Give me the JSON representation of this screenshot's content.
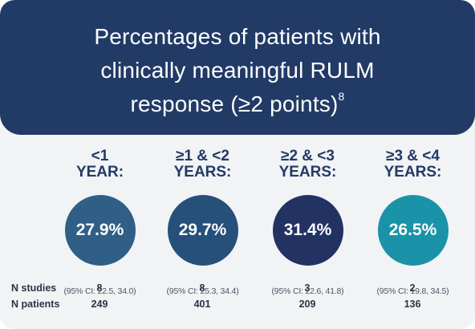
{
  "title": {
    "line1": "Percentages of patients with",
    "line2": "clinically meaningful RULM",
    "line3": "response (≥2 points)",
    "sup": "8"
  },
  "chart_data": {
    "type": "table",
    "categories": [
      "<1\nYEAR:",
      "≥1 & <2\nYEARS:",
      "≥2 & <3\nYEARS:",
      "≥3 & <4\nYEARS:"
    ],
    "series": [
      {
        "name": "",
        "values": [
          27.9,
          29.7,
          31.4,
          26.5
        ]
      }
    ],
    "value_labels": [
      "27.9%",
      "29.7%",
      "31.4%",
      "26.5%"
    ],
    "ci_labels": [
      "(95% CI: 22.5, 34.0)",
      "(95% CI: 25.3, 34.4)",
      "(95% CI: 22.6, 41.8)",
      "(95% CI: 19.8, 34.5)"
    ],
    "ci": [
      [
        22.5,
        34.0
      ],
      [
        25.3,
        34.4
      ],
      [
        22.6,
        41.8
      ],
      [
        19.8,
        34.5
      ]
    ],
    "colors": [
      "#2f5f86",
      "#24507a",
      "#223263",
      "#1a93a8"
    ],
    "rows": [
      {
        "label": "N studies",
        "values": [
          "8",
          "8",
          "3",
          "2"
        ]
      },
      {
        "label": "N patients",
        "values": [
          "249",
          "401",
          "209",
          "136"
        ]
      }
    ]
  }
}
